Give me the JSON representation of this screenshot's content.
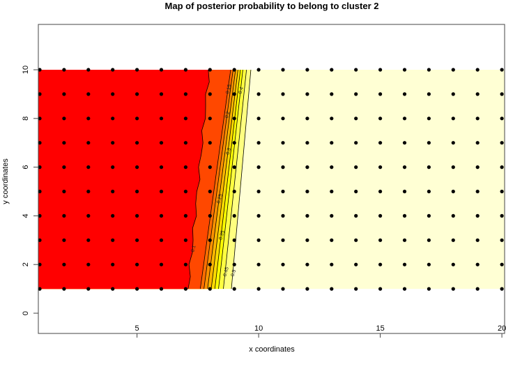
{
  "chart_data": {
    "type": "heatmap",
    "title": "Map of posterior probability to belong to cluster  2",
    "xlabel": "x coordinates",
    "ylabel": "y coordinates",
    "xlim": [
      0.9,
      20.1
    ],
    "ylim": [
      -0.85,
      11.85
    ],
    "x_ticks": [
      "5",
      "10",
      "15",
      "20"
    ],
    "x_tick_values": [
      5,
      10,
      15,
      20
    ],
    "y_ticks": [
      "0",
      "2",
      "4",
      "6",
      "8",
      "10"
    ],
    "y_tick_values": [
      0,
      2,
      4,
      6,
      8,
      10
    ],
    "grid": false,
    "points": {
      "x_range": [
        1,
        20
      ],
      "y_range": [
        1,
        10
      ],
      "color": "#000000"
    },
    "low_color": "#FF0000",
    "high_color": "#FFFFD4",
    "contours": [
      {
        "level": "0.1",
        "x_at_y1": 7.1,
        "x_at_y10": 7.96,
        "color": "#FF2400"
      },
      {
        "level": "0.15",
        "x_at_y1": 7.6,
        "x_at_y10": 8.85,
        "color": "#FF4800"
      },
      {
        "level": "0.2",
        "x_at_y1": 7.75,
        "x_at_y10": 8.95,
        "color": "#FF6D00"
      },
      {
        "level": "0.25",
        "x_at_y1": 7.9,
        "x_at_y10": 9.05,
        "color": "#FF9100"
      },
      {
        "level": "0.3",
        "x_at_y1": 8.05,
        "x_at_y10": 9.15,
        "color": "#FFB600"
      },
      {
        "level": "0.35",
        "x_at_y1": 8.2,
        "x_at_y10": 9.25,
        "color": "#FFDA00"
      },
      {
        "level": "0.4",
        "x_at_y1": 8.35,
        "x_at_y10": 9.35,
        "color": "#FFFF00"
      },
      {
        "level": "0.45",
        "x_at_y1": 8.55,
        "x_at_y10": 9.5,
        "color": "#FFFF40"
      },
      {
        "level": "0.5",
        "x_at_y1": 8.88,
        "x_at_y10": 9.68,
        "color": "#FFFF80"
      }
    ]
  }
}
